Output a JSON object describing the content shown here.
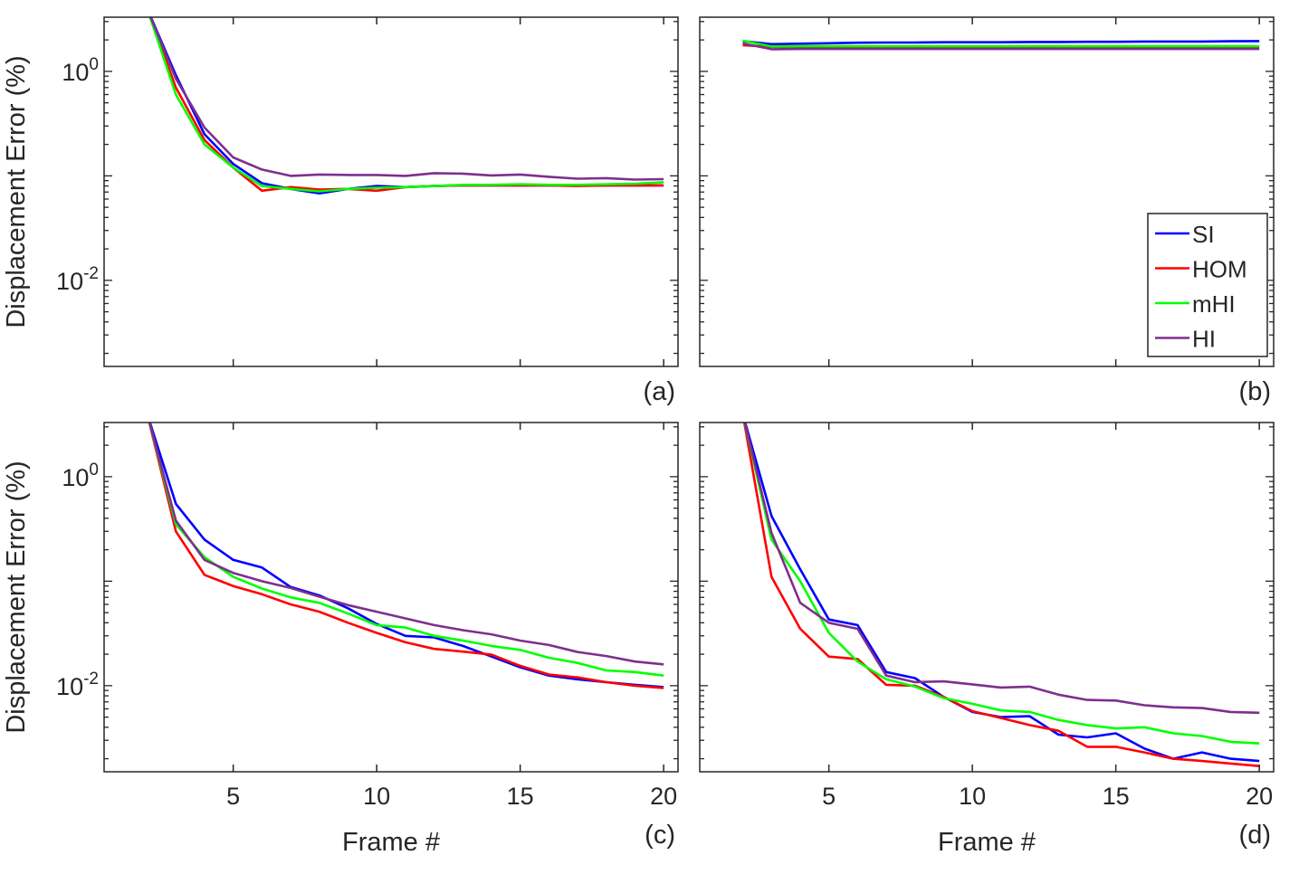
{
  "figure": {
    "xlabel": "Frame #",
    "ylabel": "Displacement Error (%)",
    "yscale": "log",
    "xlim": [
      0.5,
      20.5
    ],
    "ylim": [
      0.0015,
      3.3
    ],
    "xticks": [
      5,
      10,
      15,
      20
    ],
    "yticks": [
      {
        "value": 0.01,
        "base": "10",
        "exp": "-2"
      },
      {
        "value": 1,
        "base": "10",
        "exp": "0"
      }
    ]
  },
  "legend": {
    "location": "inside-lower-right of panel (b)",
    "entries": [
      {
        "name": "SI",
        "color": "#0000ff"
      },
      {
        "name": "HOM",
        "color": "#ff0000"
      },
      {
        "name": "mHI",
        "color": "#00ff00"
      },
      {
        "name": "HI",
        "color": "#7e2f8e"
      }
    ]
  },
  "chart_data": [
    {
      "type": "line",
      "panel": "(a)",
      "x": [
        2,
        3,
        4,
        5,
        6,
        7,
        8,
        9,
        10,
        11,
        12,
        13,
        14,
        15,
        16,
        17,
        18,
        19,
        20
      ],
      "series": [
        {
          "name": "SI",
          "values": [
            4.0,
            0.92,
            0.25,
            0.13,
            0.085,
            0.075,
            0.068,
            0.075,
            0.08,
            0.078,
            0.08,
            0.081,
            0.081,
            0.081,
            0.081,
            0.081,
            0.081,
            0.081,
            0.081
          ]
        },
        {
          "name": "HOM",
          "values": [
            4.0,
            0.7,
            0.22,
            0.12,
            0.072,
            0.078,
            0.074,
            0.075,
            0.072,
            0.078,
            0.08,
            0.081,
            0.081,
            0.081,
            0.081,
            0.08,
            0.081,
            0.081,
            0.081
          ]
        },
        {
          "name": "mHI",
          "values": [
            4.0,
            0.6,
            0.2,
            0.12,
            0.08,
            0.075,
            0.071,
            0.075,
            0.077,
            0.078,
            0.08,
            0.082,
            0.082,
            0.083,
            0.082,
            0.082,
            0.083,
            0.084,
            0.087
          ]
        },
        {
          "name": "HI",
          "values": [
            4.0,
            0.85,
            0.29,
            0.15,
            0.115,
            0.1,
            0.103,
            0.102,
            0.102,
            0.1,
            0.106,
            0.105,
            0.101,
            0.103,
            0.098,
            0.094,
            0.095,
            0.092,
            0.093
          ]
        }
      ]
    },
    {
      "type": "line",
      "panel": "(b)",
      "x": [
        2,
        3,
        4,
        5,
        6,
        7,
        8,
        9,
        10,
        11,
        12,
        13,
        14,
        15,
        16,
        17,
        18,
        19,
        20
      ],
      "series": [
        {
          "name": "SI",
          "values": [
            1.95,
            1.82,
            1.84,
            1.86,
            1.88,
            1.89,
            1.89,
            1.9,
            1.9,
            1.9,
            1.91,
            1.91,
            1.92,
            1.92,
            1.93,
            1.93,
            1.93,
            1.94,
            1.95
          ]
        },
        {
          "name": "HOM",
          "values": [
            1.78,
            1.72,
            1.72,
            1.72,
            1.72,
            1.72,
            1.72,
            1.72,
            1.72,
            1.72,
            1.72,
            1.72,
            1.72,
            1.72,
            1.72,
            1.72,
            1.72,
            1.72,
            1.72
          ]
        },
        {
          "name": "mHI",
          "values": [
            1.97,
            1.73,
            1.74,
            1.74,
            1.74,
            1.74,
            1.74,
            1.74,
            1.74,
            1.74,
            1.74,
            1.74,
            1.74,
            1.74,
            1.74,
            1.74,
            1.74,
            1.74,
            1.74
          ]
        },
        {
          "name": "HI",
          "values": [
            1.85,
            1.63,
            1.64,
            1.64,
            1.64,
            1.64,
            1.64,
            1.64,
            1.64,
            1.64,
            1.64,
            1.64,
            1.64,
            1.64,
            1.64,
            1.64,
            1.64,
            1.64,
            1.64
          ]
        }
      ]
    },
    {
      "type": "line",
      "panel": "(c)",
      "x": [
        2,
        3,
        4,
        5,
        6,
        7,
        8,
        9,
        10,
        11,
        12,
        13,
        14,
        15,
        16,
        17,
        18,
        19,
        20
      ],
      "series": [
        {
          "name": "SI",
          "values": [
            4.0,
            0.55,
            0.25,
            0.16,
            0.135,
            0.088,
            0.073,
            0.055,
            0.039,
            0.03,
            0.029,
            0.024,
            0.019,
            0.015,
            0.0125,
            0.0115,
            0.0108,
            0.0102,
            0.0097
          ]
        },
        {
          "name": "HOM",
          "values": [
            4.0,
            0.3,
            0.115,
            0.09,
            0.075,
            0.06,
            0.051,
            0.04,
            0.032,
            0.026,
            0.0225,
            0.0212,
            0.0198,
            0.0155,
            0.0128,
            0.012,
            0.0108,
            0.01,
            0.0095
          ]
        },
        {
          "name": "mHI",
          "values": [
            4.0,
            0.35,
            0.17,
            0.11,
            0.085,
            0.07,
            0.062,
            0.049,
            0.038,
            0.036,
            0.03,
            0.027,
            0.024,
            0.022,
            0.0185,
            0.0165,
            0.014,
            0.0135,
            0.0125
          ]
        },
        {
          "name": "HI",
          "values": [
            4.0,
            0.38,
            0.16,
            0.12,
            0.1,
            0.086,
            0.071,
            0.059,
            0.051,
            0.044,
            0.038,
            0.034,
            0.031,
            0.027,
            0.0245,
            0.021,
            0.0192,
            0.017,
            0.016
          ]
        }
      ]
    },
    {
      "type": "line",
      "panel": "(d)",
      "x": [
        2,
        3,
        4,
        5,
        6,
        7,
        8,
        9,
        10,
        11,
        12,
        13,
        14,
        15,
        16,
        17,
        18,
        19,
        20
      ],
      "series": [
        {
          "name": "SI",
          "values": [
            4.0,
            0.42,
            0.13,
            0.043,
            0.038,
            0.0135,
            0.0118,
            0.0078,
            0.0056,
            0.005,
            0.0051,
            0.0034,
            0.0032,
            0.0035,
            0.0025,
            0.002,
            0.0023,
            0.002,
            0.0019
          ]
        },
        {
          "name": "HOM",
          "values": [
            4.0,
            0.11,
            0.035,
            0.019,
            0.018,
            0.0102,
            0.01,
            0.0078,
            0.0057,
            0.0049,
            0.0042,
            0.0037,
            0.0026,
            0.0026,
            0.0023,
            0.002,
            0.0019,
            0.0018,
            0.0017
          ]
        },
        {
          "name": "mHI",
          "values": [
            4.0,
            0.25,
            0.1,
            0.032,
            0.017,
            0.0115,
            0.0098,
            0.0076,
            0.0067,
            0.0058,
            0.0056,
            0.0047,
            0.0042,
            0.0039,
            0.004,
            0.0035,
            0.0033,
            0.0029,
            0.0028
          ]
        },
        {
          "name": "HI",
          "values": [
            4.0,
            0.29,
            0.062,
            0.04,
            0.035,
            0.0125,
            0.0108,
            0.011,
            0.0103,
            0.0096,
            0.0098,
            0.0082,
            0.0073,
            0.0072,
            0.0065,
            0.0062,
            0.0061,
            0.0056,
            0.0055
          ]
        }
      ]
    }
  ]
}
